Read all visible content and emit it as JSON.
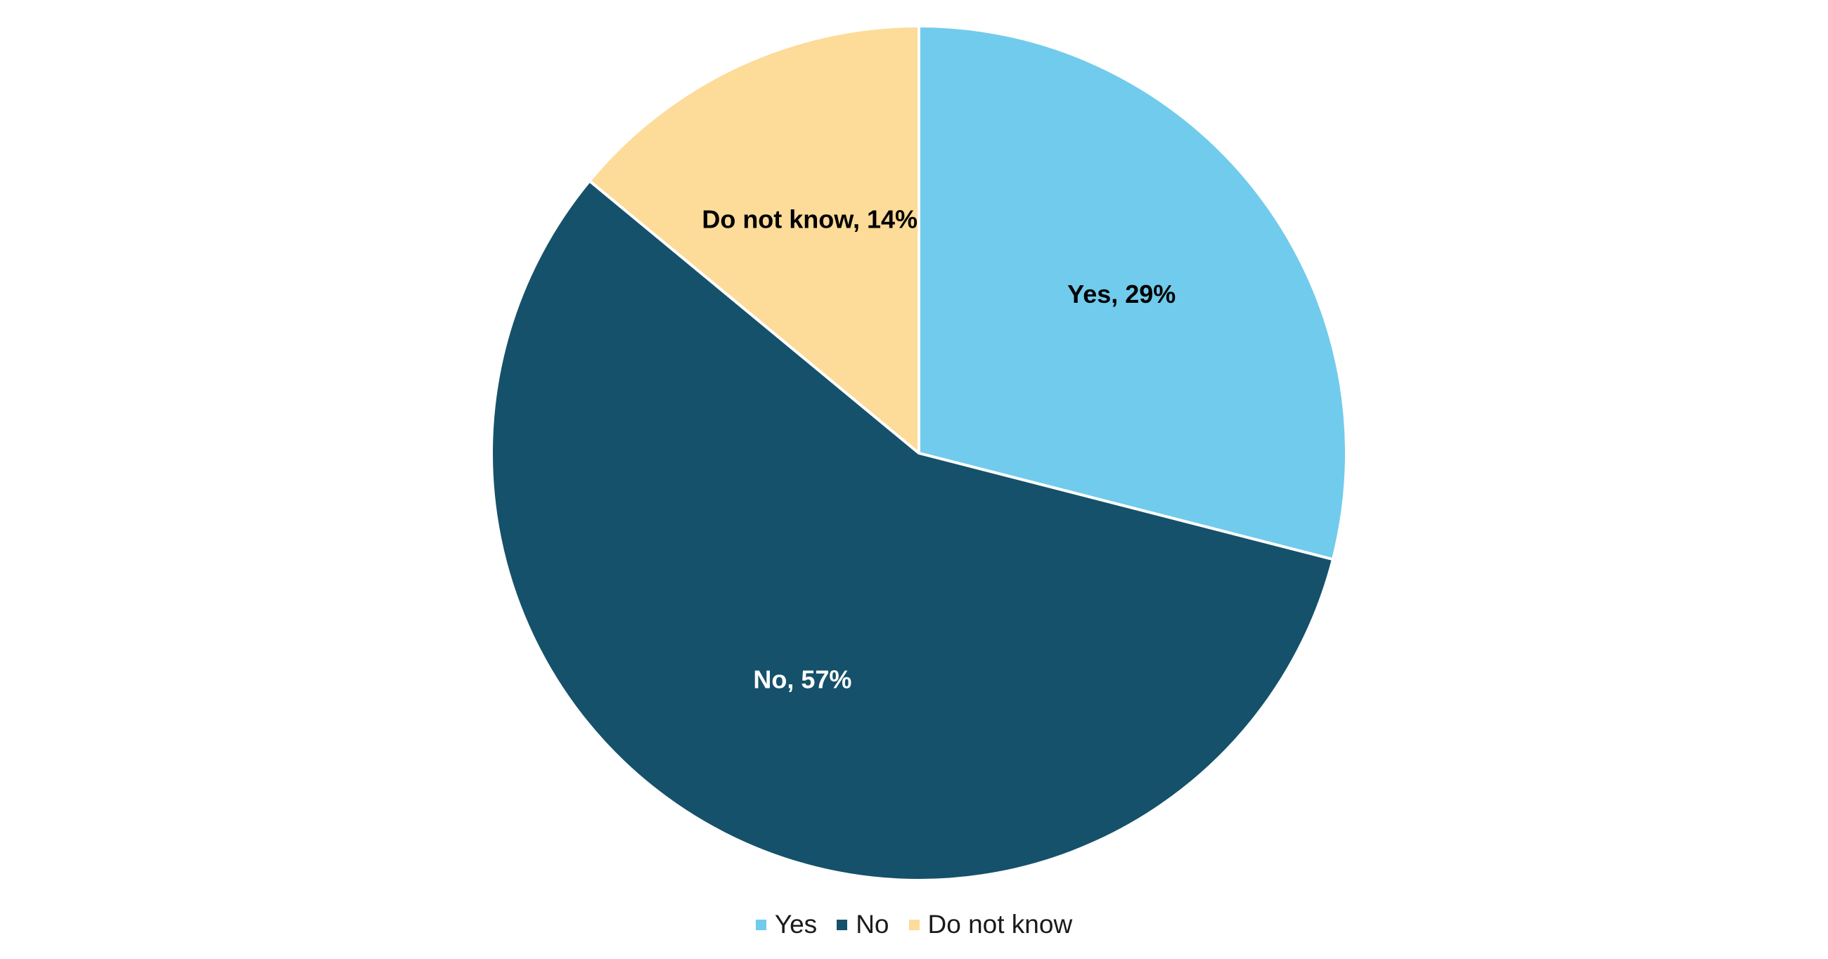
{
  "chart_data": {
    "type": "pie",
    "slices": [
      {
        "label": "Yes",
        "value": 29,
        "color": "#71CBEC",
        "data_label": "Yes, 29%",
        "label_color": "#000000"
      },
      {
        "label": "No",
        "value": 57,
        "color": "#15516A",
        "data_label": "No, 57%",
        "label_color": "#ffffff"
      },
      {
        "label": "Do not know",
        "value": 14,
        "color": "#FDDB98",
        "data_label": "Do not know, 14%",
        "label_color": "#000000"
      }
    ],
    "start_angle": "12 o'clock",
    "direction": "clockwise",
    "legend_position": "bottom",
    "legend": [
      "Yes",
      "No",
      "Do not know"
    ]
  }
}
